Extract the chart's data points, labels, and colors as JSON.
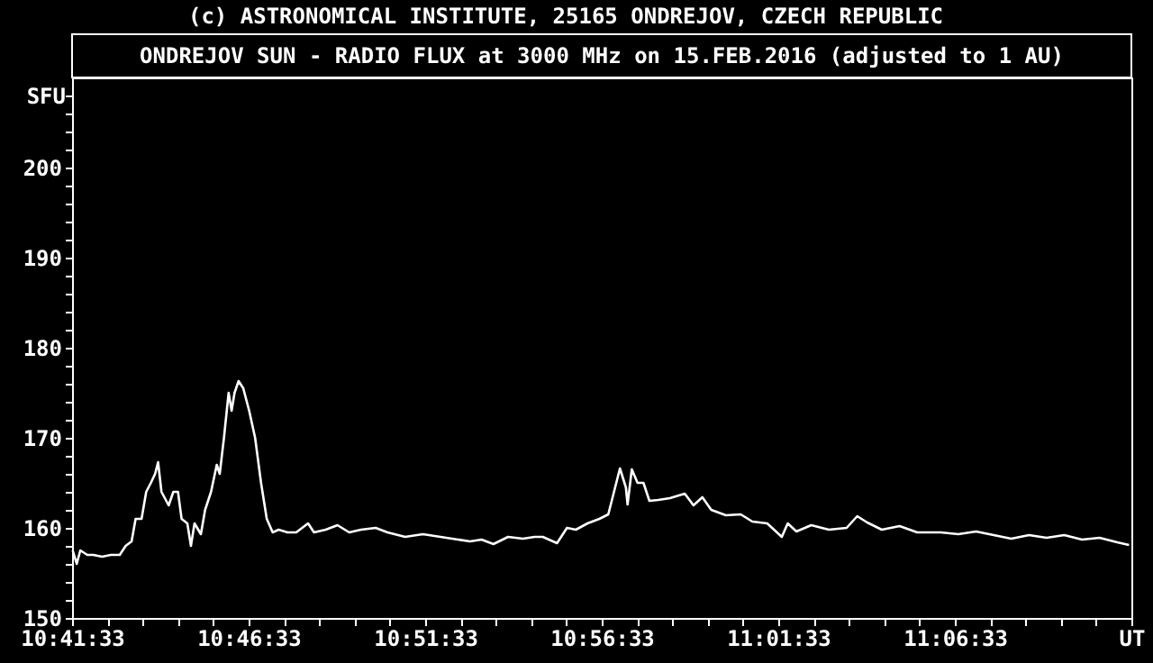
{
  "chart_data": {
    "type": "line",
    "title": "ONDREJOV SUN - RADIO FLUX at 3000 MHz on 15.FEB.2016 (adjusted to 1 AU)",
    "annotations": [
      "(c) ASTRONOMICAL INSTITUTE, 25165 ONDREJOV, CZECH REPUBLIC"
    ],
    "ylabel": "SFU",
    "x": [
      10.6928,
      10.6947,
      10.6964,
      10.6997,
      10.7025,
      10.7067,
      10.7108,
      10.715,
      10.7178,
      10.7206,
      10.7225,
      10.7253,
      10.7275,
      10.7297,
      10.7317,
      10.7331,
      10.7347,
      10.7381,
      10.7403,
      10.7425,
      10.7442,
      10.7469,
      10.7486,
      10.7503,
      10.7533,
      10.7553,
      10.7581,
      10.7608,
      10.7622,
      10.7642,
      10.7664,
      10.7678,
      10.7692,
      10.7711,
      10.7733,
      10.7761,
      10.7789,
      10.7817,
      10.7844,
      10.7872,
      10.79,
      10.7942,
      10.7983,
      10.8039,
      10.8067,
      10.8122,
      10.8178,
      10.8233,
      10.8289,
      10.8358,
      10.8414,
      10.8497,
      10.8581,
      10.8664,
      10.8719,
      10.8803,
      10.8858,
      10.8914,
      10.8983,
      10.9053,
      10.9108,
      10.9147,
      10.9214,
      10.9261,
      10.9303,
      10.9358,
      10.9414,
      10.9456,
      10.9483,
      10.9511,
      10.9539,
      10.9547,
      10.9567,
      10.9594,
      10.9622,
      10.965,
      10.9692,
      10.9747,
      10.9817,
      10.9858,
      10.99,
      10.9942,
      11.0011,
      11.0081,
      11.0136,
      11.0206,
      11.0275,
      11.0303,
      11.0344,
      11.0414,
      11.0497,
      11.0581,
      11.0631,
      11.0678,
      11.0747,
      11.0831,
      11.0914,
      11.1025,
      11.1108,
      11.1192,
      11.1275,
      11.1358,
      11.1442,
      11.1525,
      11.1608,
      11.1692,
      11.1775,
      11.1858,
      11.1914
    ],
    "series": [
      {
        "color": "#ffffff",
        "values": [
          157.5,
          156,
          157.5,
          157,
          157,
          156.8,
          157,
          157,
          158,
          158.5,
          161,
          161,
          164,
          165,
          166,
          167.3,
          164,
          162.5,
          164,
          164,
          161,
          160.5,
          158,
          160.5,
          159.3,
          162,
          164,
          167,
          166,
          170,
          175,
          173,
          175,
          176.3,
          175.5,
          173,
          170,
          165,
          161,
          159.5,
          159.8,
          159.5,
          159.5,
          160.5,
          159.5,
          159.8,
          160.3,
          159.5,
          159.8,
          160,
          159.5,
          159,
          159.3,
          159,
          158.8,
          158.5,
          158.7,
          158.2,
          159,
          158.8,
          159,
          159,
          158.3,
          160,
          159.8,
          160.5,
          161,
          161.5,
          164,
          166.6,
          164.5,
          162.6,
          166.5,
          165,
          165,
          163,
          163.1,
          163.3,
          163.8,
          162.5,
          163.4,
          162,
          161.4,
          161.5,
          160.7,
          160.5,
          159,
          160.5,
          159.6,
          160.3,
          159.8,
          160,
          161.3,
          160.6,
          159.8,
          160.2,
          159.5,
          159.5,
          159.3,
          159.6,
          159.2,
          158.8,
          159.2,
          158.9,
          159.2,
          158.7,
          158.9,
          158.4,
          158.1
        ]
      }
    ],
    "xlim": [
      10.6925,
      11.1925
    ],
    "xticks": [
      {
        "value": 10.6925,
        "label": "10:41:33"
      },
      {
        "value": 10.7092,
        "label": null
      },
      {
        "value": 10.7258,
        "label": null
      },
      {
        "value": 10.7425,
        "label": null
      },
      {
        "value": 10.7592,
        "label": null
      },
      {
        "value": 10.7758,
        "label": "10:46:33"
      },
      {
        "value": 10.7925,
        "label": null
      },
      {
        "value": 10.8092,
        "label": null
      },
      {
        "value": 10.8258,
        "label": null
      },
      {
        "value": 10.8425,
        "label": null
      },
      {
        "value": 10.8592,
        "label": "10:51:33"
      },
      {
        "value": 10.8758,
        "label": null
      },
      {
        "value": 10.8925,
        "label": null
      },
      {
        "value": 10.9092,
        "label": null
      },
      {
        "value": 10.9258,
        "label": null
      },
      {
        "value": 10.9425,
        "label": "10:56:33"
      },
      {
        "value": 10.9592,
        "label": null
      },
      {
        "value": 10.9758,
        "label": null
      },
      {
        "value": 10.9925,
        "label": null
      },
      {
        "value": 11.0092,
        "label": null
      },
      {
        "value": 11.0258,
        "label": "11:01:33"
      },
      {
        "value": 11.0425,
        "label": null
      },
      {
        "value": 11.0592,
        "label": null
      },
      {
        "value": 11.0758,
        "label": null
      },
      {
        "value": 11.0925,
        "label": null
      },
      {
        "value": 11.1092,
        "label": "11:06:33"
      },
      {
        "value": 11.1258,
        "label": null
      },
      {
        "value": 11.1425,
        "label": null
      },
      {
        "value": 11.1592,
        "label": null
      },
      {
        "value": 11.1758,
        "label": null
      },
      {
        "value": 11.1925,
        "label": "UT"
      }
    ],
    "ylim": [
      150,
      210
    ],
    "yticks": [
      150,
      {
        "value": 152,
        "label": null
      },
      {
        "value": 154,
        "label": null
      },
      {
        "value": 156,
        "label": null
      },
      {
        "value": 158,
        "label": null
      },
      160,
      {
        "value": 162,
        "label": null
      },
      {
        "value": 164,
        "label": null
      },
      {
        "value": 166,
        "label": null
      },
      {
        "value": 168,
        "label": null
      },
      170,
      {
        "value": 172,
        "label": null
      },
      {
        "value": 174,
        "label": null
      },
      {
        "value": 176,
        "label": null
      },
      {
        "value": 178,
        "label": null
      },
      180,
      {
        "value": 182,
        "label": null
      },
      {
        "value": 184,
        "label": null
      },
      {
        "value": 186,
        "label": null
      },
      {
        "value": 188,
        "label": null
      },
      190,
      {
        "value": 192,
        "label": null
      },
      {
        "value": 194,
        "label": null
      },
      {
        "value": 196,
        "label": null
      },
      {
        "value": 198,
        "label": null
      },
      200,
      {
        "value": 202,
        "label": null
      },
      {
        "value": 204,
        "label": null
      },
      {
        "value": 206,
        "label": null
      },
      {
        "value": 208,
        "label": null
      }
    ],
    "grid": false,
    "marker": "none",
    "line_style": "solid"
  }
}
